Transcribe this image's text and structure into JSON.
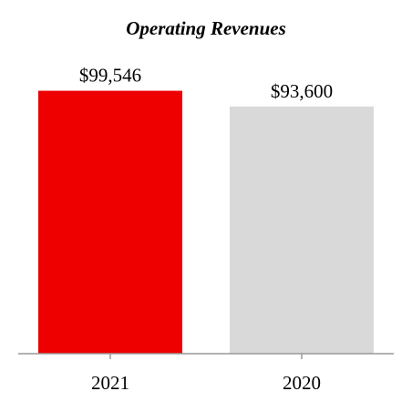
{
  "chart_data": {
    "type": "bar",
    "title": "Operating Revenues",
    "categories": [
      "2021",
      "2020"
    ],
    "values": [
      99546,
      93600
    ],
    "data_labels": [
      "$99,546",
      "$93,600"
    ],
    "colors": [
      "#ee0000",
      "#d9d9d9"
    ],
    "axis_color": "#999999",
    "ylim": [
      0,
      106300
    ],
    "grid": false,
    "legend": "none",
    "xlabel": "",
    "ylabel": ""
  }
}
